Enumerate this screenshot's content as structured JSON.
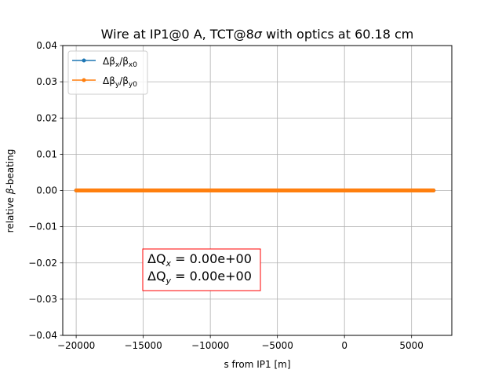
{
  "chart_data": {
    "type": "line",
    "title_parts": [
      "Wire at IP1@0 A, TCT@8",
      "σ",
      " with optics at 60.18 cm"
    ],
    "xlabel": "s from IP1 [m]",
    "ylabel_parts": [
      "relative ",
      "β",
      "-beating"
    ],
    "xlim": [
      -21000,
      8000
    ],
    "ylim": [
      -0.04,
      0.04
    ],
    "x_ticks": [
      -20000,
      -15000,
      -10000,
      -5000,
      0,
      5000
    ],
    "x_tick_labels": [
      "−20000",
      "−15000",
      "−10000",
      "−5000",
      "0",
      "5000"
    ],
    "y_ticks": [
      -0.04,
      -0.03,
      -0.02,
      -0.01,
      0.0,
      0.01,
      0.02,
      0.03,
      0.04
    ],
    "y_tick_labels": [
      "−0.04",
      "−0.03",
      "−0.02",
      "−0.01",
      "0.00",
      "0.01",
      "0.02",
      "0.03",
      "0.04"
    ],
    "grid": true,
    "legend_position": "top-left",
    "series": [
      {
        "name": "Δβx/βx0",
        "label_parts": {
          "delta": "Δβ",
          "sub1": "x",
          "slash": "/β",
          "sub2": "x0"
        },
        "color": "#1f77b4",
        "x_range": [
          -20000,
          6640
        ],
        "y": 0.0
      },
      {
        "name": "Δβy/βy0",
        "label_parts": {
          "delta": "Δβ",
          "sub1": "y",
          "slash": "/β",
          "sub2": "y0"
        },
        "color": "#ff7f0e",
        "x_range": [
          -20000,
          6640
        ],
        "y": 0.0
      }
    ],
    "annotation": {
      "lines": [
        {
          "delta": "ΔQ",
          "sub": "x",
          "rest": " = 0.00e+00"
        },
        {
          "delta": "ΔQ",
          "sub": "y",
          "rest": " = 0.00e+00"
        }
      ],
      "border_color": "#ff0000"
    }
  }
}
